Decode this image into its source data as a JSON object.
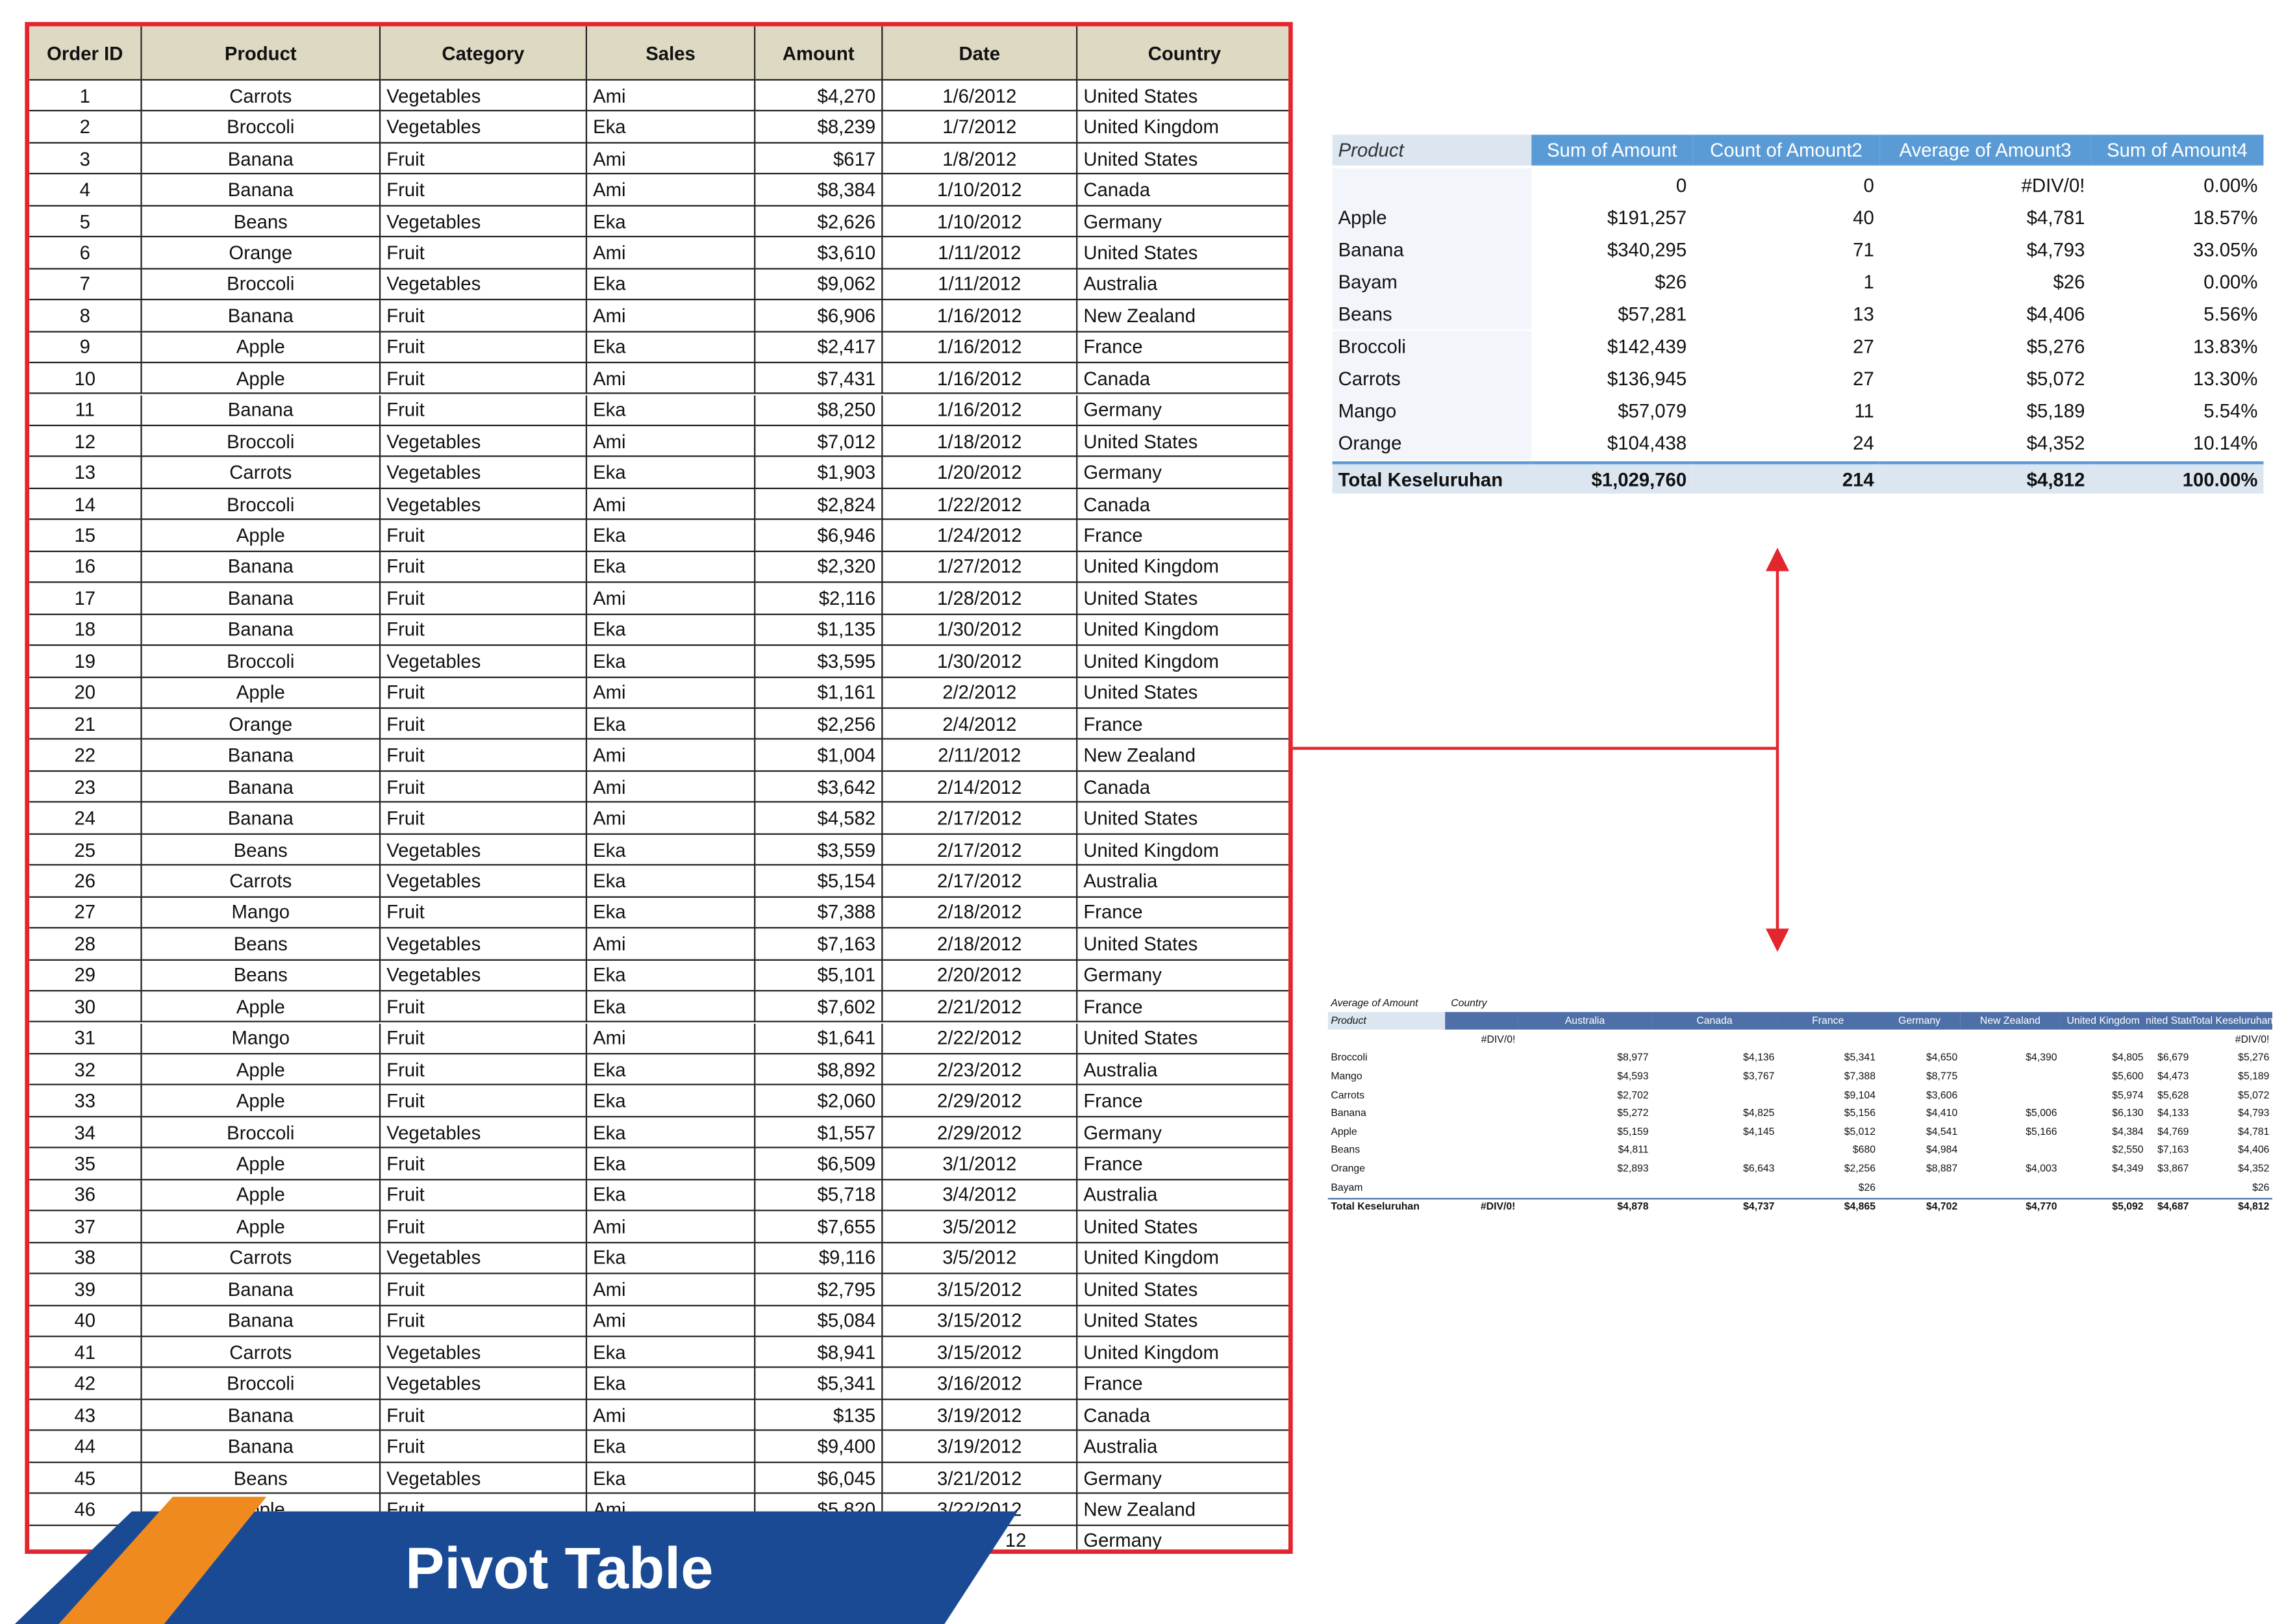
{
  "table": {
    "columns": [
      "Order ID",
      "Product",
      "Category",
      "Sales",
      "Amount",
      "Date",
      "Country"
    ],
    "rows": [
      [
        1,
        "Carrots",
        "Vegetables",
        "Ami",
        "$4,270",
        "1/6/2012",
        "United States"
      ],
      [
        2,
        "Broccoli",
        "Vegetables",
        "Eka",
        "$8,239",
        "1/7/2012",
        "United Kingdom"
      ],
      [
        3,
        "Banana",
        "Fruit",
        "Ami",
        "$617",
        "1/8/2012",
        "United States"
      ],
      [
        4,
        "Banana",
        "Fruit",
        "Ami",
        "$8,384",
        "1/10/2012",
        "Canada"
      ],
      [
        5,
        "Beans",
        "Vegetables",
        "Eka",
        "$2,626",
        "1/10/2012",
        "Germany"
      ],
      [
        6,
        "Orange",
        "Fruit",
        "Ami",
        "$3,610",
        "1/11/2012",
        "United States"
      ],
      [
        7,
        "Broccoli",
        "Vegetables",
        "Eka",
        "$9,062",
        "1/11/2012",
        "Australia"
      ],
      [
        8,
        "Banana",
        "Fruit",
        "Ami",
        "$6,906",
        "1/16/2012",
        "New Zealand"
      ],
      [
        9,
        "Apple",
        "Fruit",
        "Eka",
        "$2,417",
        "1/16/2012",
        "France"
      ],
      [
        10,
        "Apple",
        "Fruit",
        "Ami",
        "$7,431",
        "1/16/2012",
        "Canada"
      ],
      [
        11,
        "Banana",
        "Fruit",
        "Eka",
        "$8,250",
        "1/16/2012",
        "Germany"
      ],
      [
        12,
        "Broccoli",
        "Vegetables",
        "Ami",
        "$7,012",
        "1/18/2012",
        "United States"
      ],
      [
        13,
        "Carrots",
        "Vegetables",
        "Eka",
        "$1,903",
        "1/20/2012",
        "Germany"
      ],
      [
        14,
        "Broccoli",
        "Vegetables",
        "Ami",
        "$2,824",
        "1/22/2012",
        "Canada"
      ],
      [
        15,
        "Apple",
        "Fruit",
        "Eka",
        "$6,946",
        "1/24/2012",
        "France"
      ],
      [
        16,
        "Banana",
        "Fruit",
        "Eka",
        "$2,320",
        "1/27/2012",
        "United Kingdom"
      ],
      [
        17,
        "Banana",
        "Fruit",
        "Ami",
        "$2,116",
        "1/28/2012",
        "United States"
      ],
      [
        18,
        "Banana",
        "Fruit",
        "Eka",
        "$1,135",
        "1/30/2012",
        "United Kingdom"
      ],
      [
        19,
        "Broccoli",
        "Vegetables",
        "Eka",
        "$3,595",
        "1/30/2012",
        "United Kingdom"
      ],
      [
        20,
        "Apple",
        "Fruit",
        "Ami",
        "$1,161",
        "2/2/2012",
        "United States"
      ],
      [
        21,
        "Orange",
        "Fruit",
        "Eka",
        "$2,256",
        "2/4/2012",
        "France"
      ],
      [
        22,
        "Banana",
        "Fruit",
        "Ami",
        "$1,004",
        "2/11/2012",
        "New Zealand"
      ],
      [
        23,
        "Banana",
        "Fruit",
        "Ami",
        "$3,642",
        "2/14/2012",
        "Canada"
      ],
      [
        24,
        "Banana",
        "Fruit",
        "Ami",
        "$4,582",
        "2/17/2012",
        "United States"
      ],
      [
        25,
        "Beans",
        "Vegetables",
        "Eka",
        "$3,559",
        "2/17/2012",
        "United Kingdom"
      ],
      [
        26,
        "Carrots",
        "Vegetables",
        "Eka",
        "$5,154",
        "2/17/2012",
        "Australia"
      ],
      [
        27,
        "Mango",
        "Fruit",
        "Eka",
        "$7,388",
        "2/18/2012",
        "France"
      ],
      [
        28,
        "Beans",
        "Vegetables",
        "Ami",
        "$7,163",
        "2/18/2012",
        "United States"
      ],
      [
        29,
        "Beans",
        "Vegetables",
        "Eka",
        "$5,101",
        "2/20/2012",
        "Germany"
      ],
      [
        30,
        "Apple",
        "Fruit",
        "Eka",
        "$7,602",
        "2/21/2012",
        "France"
      ],
      [
        31,
        "Mango",
        "Fruit",
        "Ami",
        "$1,641",
        "2/22/2012",
        "United States"
      ],
      [
        32,
        "Apple",
        "Fruit",
        "Eka",
        "$8,892",
        "2/23/2012",
        "Australia"
      ],
      [
        33,
        "Apple",
        "Fruit",
        "Eka",
        "$2,060",
        "2/29/2012",
        "France"
      ],
      [
        34,
        "Broccoli",
        "Vegetables",
        "Eka",
        "$1,557",
        "2/29/2012",
        "Germany"
      ],
      [
        35,
        "Apple",
        "Fruit",
        "Eka",
        "$6,509",
        "3/1/2012",
        "France"
      ],
      [
        36,
        "Apple",
        "Fruit",
        "Eka",
        "$5,718",
        "3/4/2012",
        "Australia"
      ],
      [
        37,
        "Apple",
        "Fruit",
        "Ami",
        "$7,655",
        "3/5/2012",
        "United States"
      ],
      [
        38,
        "Carrots",
        "Vegetables",
        "Eka",
        "$9,116",
        "3/5/2012",
        "United Kingdom"
      ],
      [
        39,
        "Banana",
        "Fruit",
        "Ami",
        "$2,795",
        "3/15/2012",
        "United States"
      ],
      [
        40,
        "Banana",
        "Fruit",
        "Ami",
        "$5,084",
        "3/15/2012",
        "United States"
      ],
      [
        41,
        "Carrots",
        "Vegetables",
        "Eka",
        "$8,941",
        "3/15/2012",
        "United Kingdom"
      ],
      [
        42,
        "Broccoli",
        "Vegetables",
        "Eka",
        "$5,341",
        "3/16/2012",
        "France"
      ],
      [
        43,
        "Banana",
        "Fruit",
        "Ami",
        "$135",
        "3/19/2012",
        "Canada"
      ],
      [
        44,
        "Banana",
        "Fruit",
        "Eka",
        "$9,400",
        "3/19/2012",
        "Australia"
      ],
      [
        45,
        "Beans",
        "Vegetables",
        "Eka",
        "$6,045",
        "3/21/2012",
        "Germany"
      ],
      [
        46,
        "Apple",
        "Fruit",
        "Ami",
        "$5,820",
        "3/22/2012",
        "New Zealand"
      ]
    ],
    "partial_row": {
      "date": "12",
      "country": "Germany"
    }
  },
  "pivot": {
    "columns": [
      "Product",
      "Sum of Amount",
      "Count of Amount2",
      "Average of Amount3",
      "Sum of Amount4"
    ],
    "rows": [
      [
        null,
        "0",
        "0",
        "#DIV/0!",
        "0.00%"
      ],
      [
        "Apple",
        "$191,257",
        "40",
        "$4,781",
        "18.57%"
      ],
      [
        "Banana",
        "$340,295",
        "71",
        "$4,793",
        "33.05%"
      ],
      [
        "Bayam",
        "$26",
        "1",
        "$26",
        "0.00%"
      ],
      [
        "Beans",
        "$57,281",
        "13",
        "$4,406",
        "5.56%"
      ],
      [
        "Broccoli",
        "$142,439",
        "27",
        "$5,276",
        "13.83%"
      ],
      [
        "Carrots",
        "$136,945",
        "27",
        "$5,072",
        "13.30%"
      ],
      [
        "Mango",
        "$57,079",
        "11",
        "$5,189",
        "5.54%"
      ],
      [
        "Orange",
        "$104,438",
        "24",
        "$4,352",
        "10.14%"
      ]
    ],
    "total": [
      "Total Keseluruhan",
      "$1,029,760",
      "214",
      "$4,812",
      "100.00%"
    ]
  },
  "mini_pivot": {
    "title": "Average of Amount",
    "column_field": "Country",
    "row_field": "Product",
    "columns": [
      null,
      "Australia",
      "Canada",
      "France",
      "Germany",
      "New Zealand",
      "United Kingdom",
      "United States",
      "Total Keseluruhan"
    ],
    "rows": [
      [
        null,
        "#DIV/0!",
        null,
        null,
        null,
        null,
        null,
        null,
        null,
        "#DIV/0!"
      ],
      [
        "Broccoli",
        null,
        "$8,977",
        "$4,136",
        "$5,341",
        "$4,650",
        "$4,390",
        "$4,805",
        "$6,679",
        "$5,276"
      ],
      [
        "Mango",
        null,
        "$4,593",
        "$3,767",
        "$7,388",
        "$8,775",
        null,
        "$5,600",
        "$4,473",
        "$5,189"
      ],
      [
        "Carrots",
        null,
        "$2,702",
        null,
        "$9,104",
        "$3,606",
        null,
        "$5,974",
        "$5,628",
        "$5,072"
      ],
      [
        "Banana",
        null,
        "$5,272",
        "$4,825",
        "$5,156",
        "$4,410",
        "$5,006",
        "$6,130",
        "$4,133",
        "$4,793"
      ],
      [
        "Apple",
        null,
        "$5,159",
        "$4,145",
        "$5,012",
        "$4,541",
        "$5,166",
        "$4,384",
        "$4,769",
        "$4,781"
      ],
      [
        "Beans",
        null,
        "$4,811",
        null,
        "$680",
        "$4,984",
        null,
        "$2,550",
        "$7,163",
        "$4,406"
      ],
      [
        "Orange",
        null,
        "$2,893",
        "$6,643",
        "$2,256",
        "$8,887",
        "$4,003",
        "$4,349",
        "$3,867",
        "$4,352"
      ],
      [
        "Bayam",
        null,
        null,
        null,
        "$26",
        null,
        null,
        null,
        null,
        "$26"
      ]
    ],
    "total": [
      "Total Keseluruhan",
      "#DIV/0!",
      "$4,878",
      "$4,737",
      "$4,865",
      "$4,702",
      "$4,770",
      "$5,092",
      "$4,687",
      "$4,812"
    ]
  },
  "banner": {
    "title": "Pivot Table"
  }
}
